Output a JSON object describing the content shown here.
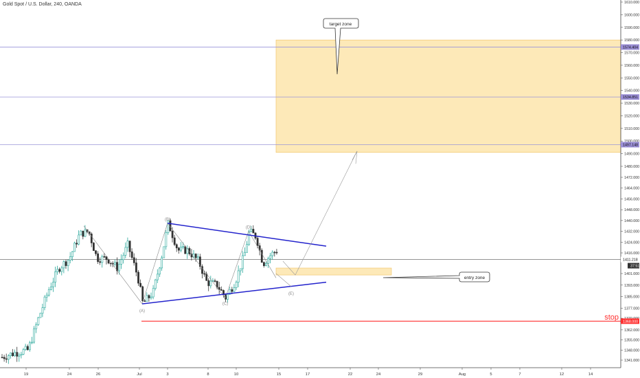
{
  "header": {
    "title": "Gold Spot / U.S. Dollar, 240, OANDA"
  },
  "colors": {
    "up": "#26a69a",
    "down": "#333333",
    "zone": "#fde9b8",
    "zone_border": "#f0c060",
    "level": "#9a95d9",
    "tag": "#9b8fd6",
    "stop": "#ff3030",
    "triangle": "#2222cc",
    "price": "#333333",
    "wave": "#888888"
  },
  "chart_data": {
    "type": "candlestick",
    "title": "Gold Spot / U.S. Dollar, 240, OANDA",
    "ylim": [
      1335,
      1612
    ],
    "x_ticks": [
      "19",
      "24",
      "26",
      "Jul",
      "3",
      "8",
      "10",
      "15",
      "17",
      "22",
      "24",
      "29",
      "Aug",
      "5",
      "7",
      "12",
      "14"
    ],
    "y_ticks": [
      "1610.000",
      "1600.000",
      "1590.000",
      "1580.000",
      "1570.000",
      "1560.000",
      "1550.000",
      "1540.000",
      "1530.000",
      "1520.000",
      "1510.000",
      "1500.000",
      "1490.000",
      "1480.000",
      "1472.000",
      "1464.000",
      "1456.000",
      "1448.000",
      "1440.000",
      "1432.000",
      "1424.000",
      "1416.000",
      "1401.000",
      "1393.000",
      "1385.000",
      "1377.000",
      "1370.000",
      "1362.000",
      "1355.000",
      "1348.000",
      "1341.000"
    ],
    "levels": [
      {
        "value": 1574.404,
        "label": "1574.404"
      },
      {
        "value": 1534.851,
        "label": "1534.851"
      },
      {
        "value": 1497.148,
        "label": "1497.148"
      }
    ],
    "current_price": {
      "value": 1411.218,
      "label": "1411.218",
      "countdown": "37:51"
    },
    "stop": {
      "value": 1368.0,
      "label": "1368.000",
      "text": "stop"
    },
    "target_zone": {
      "x0": "Jul 15",
      "top": 1580,
      "bottom": 1491,
      "text": "target zone"
    },
    "entry_zone": {
      "x0": "Jul 15",
      "x1": "Jul 24",
      "top": 1405,
      "bottom": 1400,
      "text": "entry zone"
    },
    "wave_labels": [
      "(A)",
      "(B)",
      "(C)",
      "(D)",
      "(E)"
    ]
  }
}
